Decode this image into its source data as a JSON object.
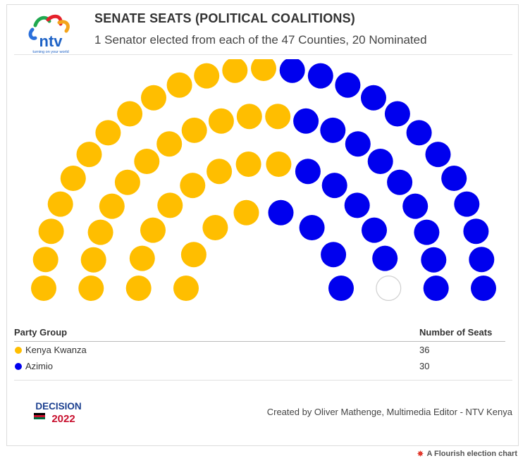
{
  "header": {
    "title": "SENATE SEATS (POLITICAL COALITIONS)",
    "subtitle": "1 Senator elected from each of the 47 Counties, 20 Nominated",
    "logo_text": "ntv",
    "logo_tagline": "turning on your world"
  },
  "chart_data": {
    "type": "parliament",
    "total_seats": 67,
    "series": [
      {
        "name": "Kenya Kwanza",
        "value": 36,
        "color": "#FFBE00"
      },
      {
        "name": "Azimio",
        "value": 30,
        "color": "#0000EE"
      }
    ],
    "unfilled_color": "#ffffff"
  },
  "table": {
    "col_party": "Party Group",
    "col_seats": "Number of Seats",
    "rows": [
      {
        "party": "Kenya Kwanza",
        "seats": "36",
        "color": "#FFBE00"
      },
      {
        "party": "Azimio",
        "seats": "30",
        "color": "#0000EE"
      }
    ]
  },
  "footer": {
    "decision_logo_top": "DECISION",
    "decision_logo_year": "2022",
    "credit": "Created by Oliver Mathenge, Multimedia Editor - NTV Kenya",
    "flourish": "A Flourish election chart"
  }
}
